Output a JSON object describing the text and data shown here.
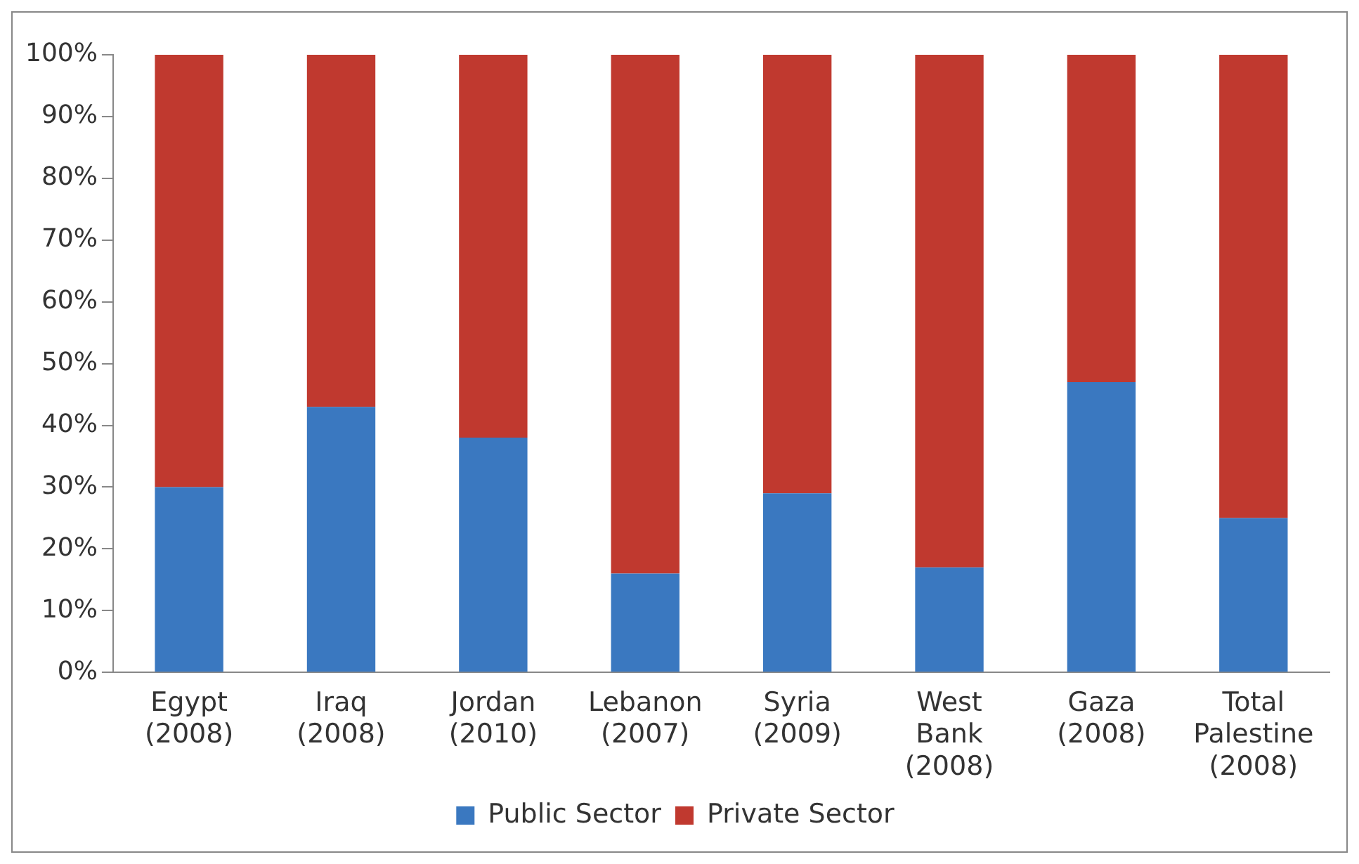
{
  "chart_data": {
    "type": "bar",
    "stacked": true,
    "categories": [
      "Egypt (2008)",
      "Iraq (2008)",
      "Jordan (2010)",
      "Lebanon (2007)",
      "Syria (2009)",
      "West Bank (2008)",
      "Gaza (2008)",
      "Total Palestine (2008)"
    ],
    "series": [
      {
        "name": "Public Sector",
        "color": "#3a78c0",
        "values": [
          30,
          43,
          38,
          16,
          29,
          17,
          47,
          25
        ]
      },
      {
        "name": "Private Sector",
        "color": "#c0392f",
        "values": [
          70,
          57,
          62,
          84,
          71,
          83,
          53,
          75
        ]
      }
    ],
    "ylim": [
      0,
      100
    ],
    "yticks": [
      {
        "value": 0,
        "label": "0%"
      },
      {
        "value": 10,
        "label": "10%"
      },
      {
        "value": 20,
        "label": "20%"
      },
      {
        "value": 30,
        "label": "30%"
      },
      {
        "value": 40,
        "label": "40%"
      },
      {
        "value": 50,
        "label": "50%"
      },
      {
        "value": 60,
        "label": "60%"
      },
      {
        "value": 70,
        "label": "70%"
      },
      {
        "value": 80,
        "label": "80%"
      },
      {
        "value": 90,
        "label": "90%"
      },
      {
        "value": 100,
        "label": "100%"
      }
    ],
    "grid": false,
    "legend": "bottom"
  }
}
